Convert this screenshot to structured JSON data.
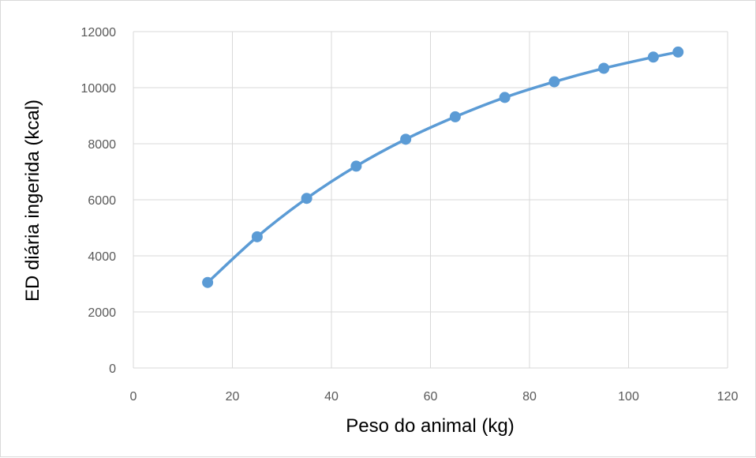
{
  "chart_data": {
    "type": "line",
    "title": "",
    "xlabel": "Peso do animal (kg)",
    "ylabel": "ED diária ingerida (kcal)",
    "xlim": [
      0,
      120
    ],
    "ylim": [
      0,
      12000
    ],
    "x_ticks": [
      0,
      20,
      40,
      60,
      80,
      100,
      120
    ],
    "y_ticks": [
      0,
      2000,
      4000,
      6000,
      8000,
      10000,
      12000
    ],
    "grid": true,
    "legend": "none",
    "series": [
      {
        "color": "#5b9bd5",
        "marker": "circle",
        "smooth": true,
        "x": [
          15,
          25,
          35,
          45,
          55,
          65,
          75,
          85,
          95,
          105,
          110
        ],
        "y": [
          3050,
          4680,
          6050,
          7200,
          8160,
          8960,
          9650,
          10210,
          10690,
          11090,
          11270
        ]
      }
    ]
  }
}
